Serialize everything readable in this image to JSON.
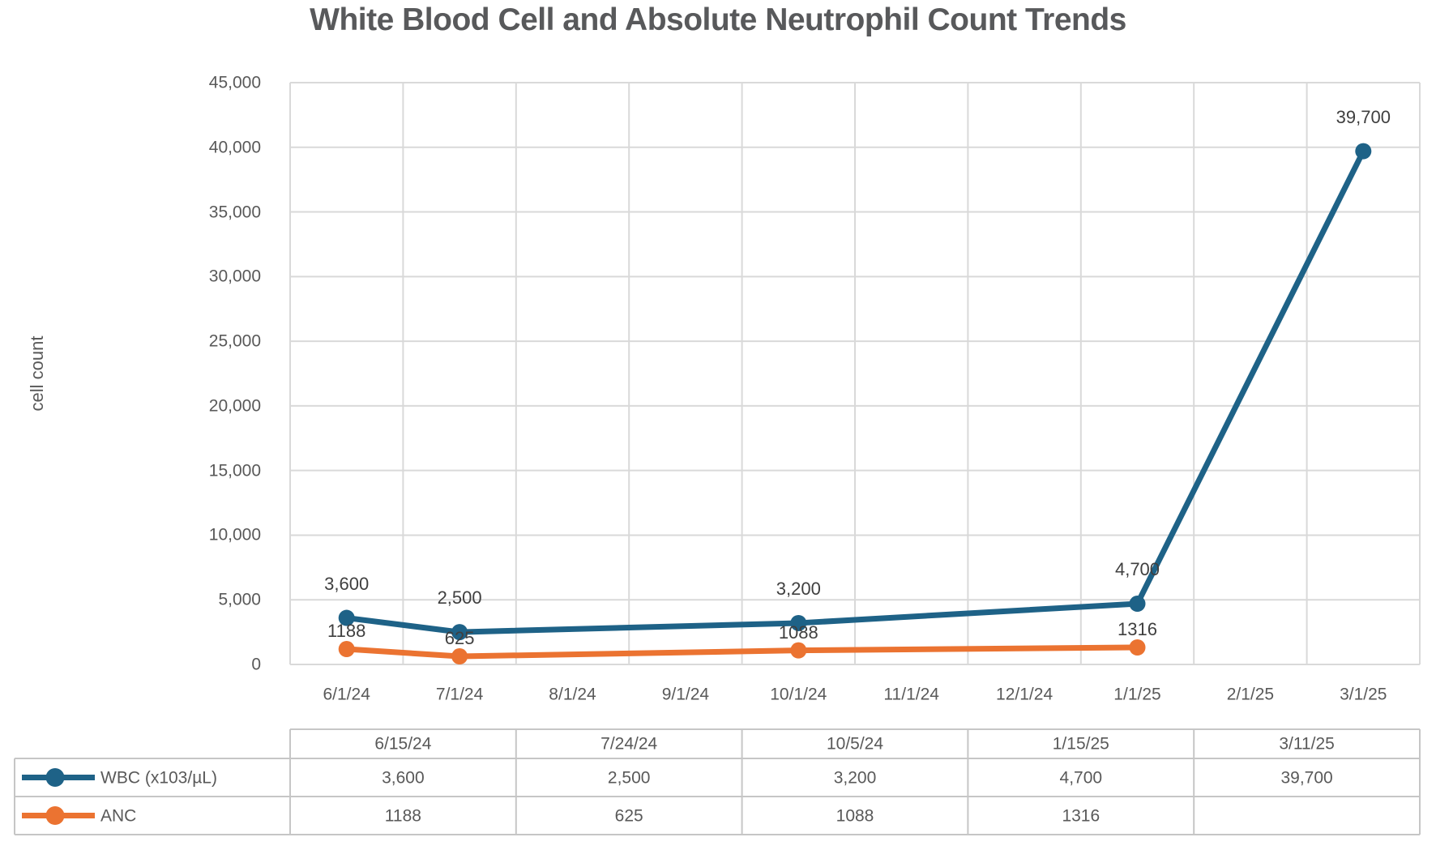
{
  "chart_data": {
    "type": "line",
    "title": "White Blood Cell and Absolute Neutrophil Count Trends",
    "xlabel": "",
    "ylabel": "cell count",
    "ylim": [
      0,
      45000
    ],
    "ytick_step": 5000,
    "ytick_labels": [
      "0",
      "5,000",
      "10,000",
      "15,000",
      "20,000",
      "25,000",
      "30,000",
      "35,000",
      "40,000",
      "45,000"
    ],
    "xtick_labels": [
      "6/1/24",
      "7/1/24",
      "8/1/24",
      "9/1/24",
      "10/1/24",
      "11/1/24",
      "12/1/24",
      "1/1/25",
      "2/1/25",
      "3/1/25"
    ],
    "grid": true,
    "legend_position": "data-table-left",
    "series": [
      {
        "name": "WBC (x103/µL)",
        "color": "#1E6287",
        "x_dates": [
          "6/15/24",
          "7/24/24",
          "10/5/24",
          "1/15/25",
          "3/11/25"
        ],
        "category_positions": [
          0,
          1,
          4,
          7,
          9
        ],
        "values": [
          3600,
          2500,
          3200,
          4700,
          39700
        ],
        "data_labels": [
          "3,600",
          "2,500",
          "3,200",
          "4,700",
          "39,700"
        ],
        "label_dy": -42
      },
      {
        "name": "ANC",
        "color": "#EB7331",
        "x_dates": [
          "6/15/24",
          "7/24/24",
          "10/5/24",
          "1/15/25"
        ],
        "category_positions": [
          0,
          1,
          4,
          7
        ],
        "values": [
          1188,
          625,
          1088,
          1316
        ],
        "data_labels": [
          "1188",
          "625",
          "1088",
          "1316"
        ],
        "label_dy": -22
      }
    ],
    "data_table": {
      "columns": [
        "6/15/24",
        "7/24/24",
        "10/5/24",
        "1/15/25",
        "3/11/25"
      ],
      "rows": [
        {
          "label": "WBC (x103/µL)",
          "values": [
            "3,600",
            "2,500",
            "3,200",
            "4,700",
            "39,700"
          ]
        },
        {
          "label": "ANC",
          "values": [
            "1188",
            "625",
            "1088",
            "1316",
            ""
          ]
        }
      ]
    },
    "colors": {
      "wbc_series": "#1E6287",
      "anc_series": "#EB7331",
      "gridline": "#D9D9D9",
      "table_border": "#C6C6C6",
      "axis_text": "#595959",
      "data_label_text": "#3F3F3F",
      "title_text": "#58595B"
    }
  }
}
